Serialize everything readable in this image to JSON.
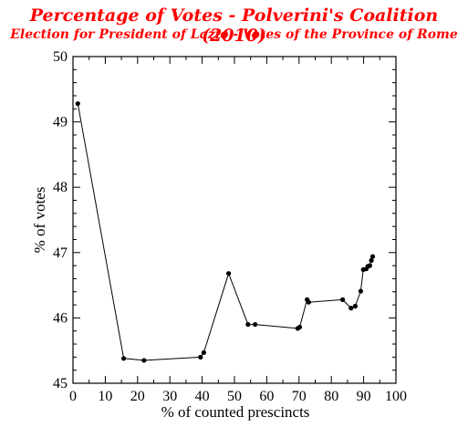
{
  "chart_data": {
    "type": "line",
    "title": "Percentage of Votes - Polverini's Coalition  (2010)",
    "subtitle": "Election for President of Lazio - Votes of the Province of Rome",
    "xlabel": "% of  counted prescincts",
    "ylabel": "% of votes",
    "xlim": [
      0,
      100
    ],
    "ylim": [
      45,
      50
    ],
    "xticks": [
      0,
      10,
      20,
      30,
      40,
      50,
      60,
      70,
      80,
      90,
      100
    ],
    "yticks": [
      45,
      46,
      47,
      48,
      49,
      50
    ],
    "grid": false,
    "series": [
      {
        "color": "#000000",
        "x": [
          1.5,
          15.7,
          22.0,
          39.5,
          40.5,
          48.2,
          54.2,
          56.4,
          69.6,
          70.2,
          72.5,
          73.0,
          83.5,
          86.1,
          87.4,
          89.1,
          89.9,
          90.8,
          91.3,
          91.9,
          92.4,
          92.8
        ],
        "y": [
          49.28,
          45.38,
          45.35,
          45.4,
          45.47,
          46.68,
          45.9,
          45.9,
          45.84,
          45.86,
          46.28,
          46.24,
          46.28,
          46.15,
          46.18,
          46.41,
          46.74,
          46.75,
          46.79,
          46.8,
          46.88,
          46.94
        ]
      }
    ]
  }
}
